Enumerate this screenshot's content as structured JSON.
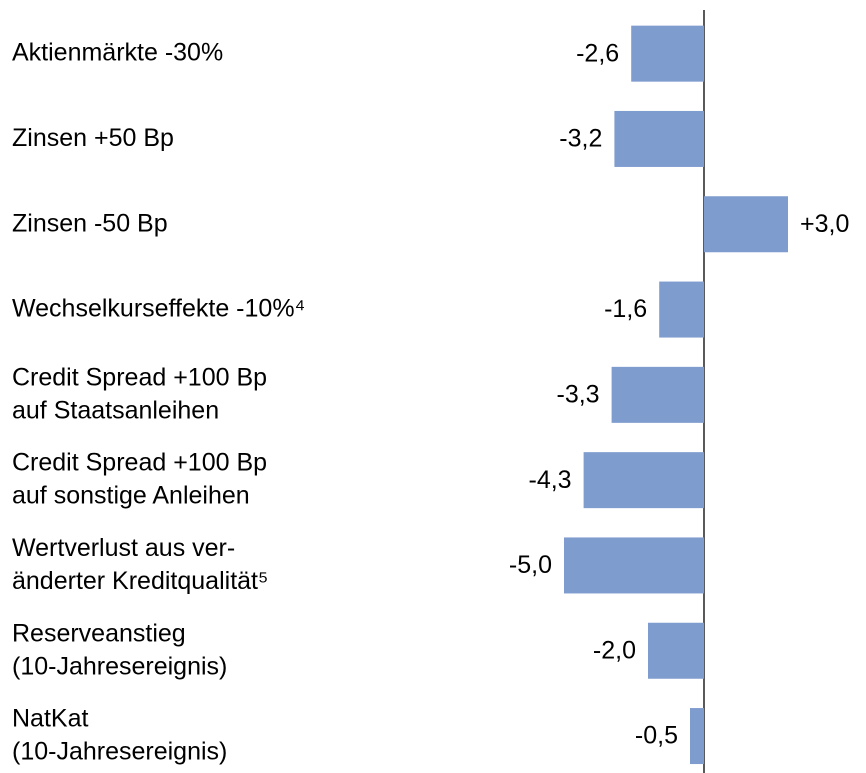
{
  "chart_data": {
    "type": "bar",
    "orientation": "horizontal",
    "categories": [
      "Aktienmärkte -30%",
      "Zinsen +50 Bp",
      "Zinsen -50 Bp",
      "Wechselkurseffekte -10%⁴",
      "Credit Spread +100 Bp\nauf Staatsanleihen",
      "Credit Spread +100 Bp\nauf sonstige Anleihen",
      "Wertverlust aus ver-\nänderter Kreditqualität⁵",
      "Reserveanstieg\n(10-Jahresereignis)",
      "NatKat\n(10-Jahresereignis)"
    ],
    "values": [
      -2.6,
      -3.2,
      3.0,
      -1.6,
      -3.3,
      -4.3,
      -5.0,
      -2.0,
      -0.5
    ],
    "value_labels": [
      "-2,6",
      "-3,2",
      "+3,0",
      "-1,6",
      "-3,3",
      "-4,3",
      "-5,0",
      "-2,0",
      "-0,5"
    ],
    "color": "#7f9ccf"
  }
}
